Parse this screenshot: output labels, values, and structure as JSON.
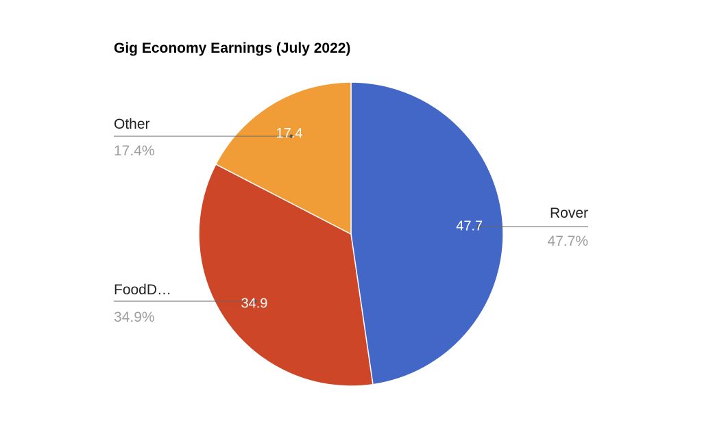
{
  "chart_data": {
    "type": "pie",
    "title": "Gig Economy Earnings (July 2022)",
    "slices": [
      {
        "name": "Rover",
        "legend_label": "Rover",
        "value": 47.7,
        "value_label": "47.7",
        "percent_label": "47.7%",
        "color": "#4267c7"
      },
      {
        "name": "FoodDash",
        "legend_label": "FoodD…",
        "value": 34.9,
        "value_label": "34.9",
        "percent_label": "34.9%",
        "color": "#cc4627"
      },
      {
        "name": "Other",
        "legend_label": "Other",
        "value": 17.4,
        "value_label": "17.4",
        "percent_label": "17.4%",
        "color": "#f09d38"
      }
    ],
    "legend_position": "labeled",
    "start_angle": "12 o'clock",
    "direction": "clockwise"
  }
}
